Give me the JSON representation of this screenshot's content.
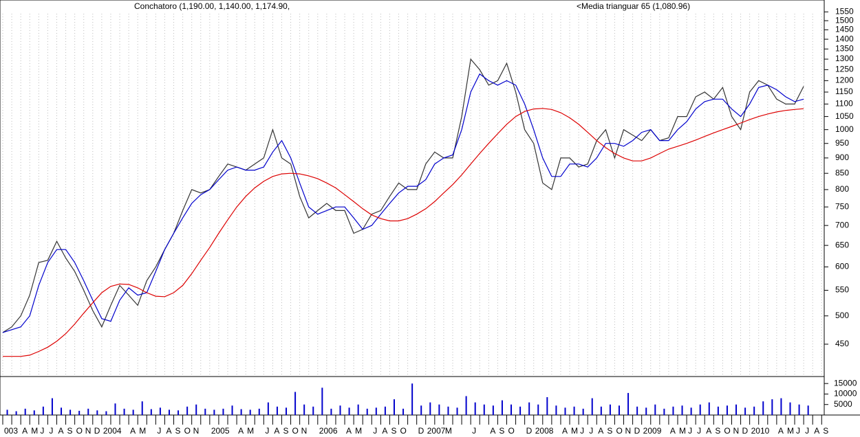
{
  "chart_data": [
    {
      "type": "line",
      "title": "Conchatoro (1,190.00, 1,140.00, 1,174.90,",
      "log": true,
      "ylim": [
        400,
        1620
      ],
      "yticks": [
        450,
        500,
        550,
        600,
        650,
        700,
        750,
        800,
        850,
        900,
        950,
        1000,
        1050,
        1100,
        1150,
        1200,
        1250,
        1300,
        1350,
        1400,
        1450,
        1500,
        1550
      ],
      "series": [
        {
          "color": "#333333",
          "values": [
            470,
            480,
            500,
            540,
            610,
            615,
            660,
            620,
            590,
            550,
            510,
            480,
            520,
            560,
            540,
            520,
            570,
            600,
            640,
            680,
            740,
            800,
            790,
            800,
            840,
            880,
            870,
            860,
            880,
            900,
            1000,
            900,
            880,
            780,
            720,
            740,
            760,
            740,
            740,
            680,
            690,
            730,
            740,
            780,
            820,
            800,
            800,
            880,
            920,
            900,
            900,
            1050,
            1300,
            1250,
            1180,
            1200,
            1280,
            1150,
            1000,
            950,
            820,
            800,
            900,
            900,
            870,
            880,
            960,
            1000,
            900,
            1000,
            980,
            960,
            1000,
            960,
            970,
            1050,
            1050,
            1130,
            1150,
            1120,
            1170,
            1050,
            1000,
            1150,
            1200,
            1180,
            1120,
            1100,
            1100,
            1175,
            null,
            null
          ]
        },
        {
          "color": "#0000cc",
          "values": [
            470,
            475,
            480,
            500,
            560,
            610,
            640,
            640,
            610,
            570,
            530,
            495,
            490,
            530,
            555,
            540,
            545,
            590,
            640,
            680,
            720,
            760,
            785,
            800,
            830,
            860,
            870,
            860,
            860,
            870,
            920,
            960,
            900,
            820,
            750,
            730,
            740,
            750,
            750,
            720,
            690,
            700,
            730,
            760,
            790,
            810,
            810,
            830,
            880,
            900,
            910,
            1000,
            1150,
            1230,
            1200,
            1180,
            1200,
            1180,
            1100,
            1000,
            900,
            840,
            840,
            880,
            880,
            870,
            900,
            950,
            950,
            940,
            960,
            990,
            1000,
            960,
            960,
            1000,
            1030,
            1080,
            1110,
            1120,
            1120,
            1080,
            1050,
            1100,
            1170,
            1180,
            1160,
            1130,
            1110,
            1120,
            null,
            null
          ]
        },
        {
          "name": "<Media trianguar  65 (1,080.96)",
          "color": "#dd0000",
          "values": [
            430,
            430,
            430,
            432,
            438,
            445,
            455,
            468,
            485,
            505,
            525,
            545,
            558,
            563,
            562,
            555,
            545,
            538,
            537,
            545,
            560,
            585,
            615,
            645,
            680,
            715,
            750,
            780,
            805,
            825,
            840,
            848,
            850,
            848,
            842,
            833,
            820,
            805,
            785,
            765,
            745,
            728,
            718,
            712,
            712,
            718,
            730,
            745,
            765,
            790,
            815,
            845,
            880,
            915,
            950,
            985,
            1020,
            1050,
            1070,
            1080,
            1082,
            1078,
            1065,
            1045,
            1020,
            990,
            960,
            935,
            915,
            900,
            890,
            890,
            900,
            915,
            930,
            940,
            950,
            962,
            975,
            988,
            1000,
            1012,
            1025,
            1038,
            1050,
            1060,
            1068,
            1074,
            1078,
            1081,
            null,
            null
          ]
        }
      ]
    },
    {
      "type": "bar",
      "color": "#0000cc",
      "ylim": [
        0,
        18000
      ],
      "yticks": [
        5000,
        10000,
        15000
      ],
      "categories": [
        "003",
        null,
        "A",
        "M",
        "J",
        "J",
        "A",
        "S",
        "O",
        "N",
        "D",
        "2004",
        null,
        null,
        "A",
        "M",
        null,
        "J",
        "A",
        "S",
        "O",
        "N",
        null,
        "2005",
        null,
        null,
        "A",
        "M",
        null,
        "J",
        "A",
        "S",
        "O",
        "N",
        null,
        "2006",
        null,
        null,
        "A",
        "M",
        null,
        "J",
        "A",
        "S",
        "O",
        null,
        "D",
        "2007",
        null,
        "M",
        null,
        null,
        "J",
        null,
        "A",
        "S",
        "O",
        null,
        "D",
        "2008",
        null,
        null,
        "A",
        "M",
        "J",
        "J",
        "A",
        "S",
        "O",
        "N",
        "D",
        "2009",
        null,
        null,
        "A",
        "M",
        "J",
        "J",
        "A",
        "S",
        "O",
        "N",
        "D",
        "2010",
        null,
        null,
        "A",
        "M",
        "J",
        "J",
        "A",
        "S"
      ],
      "values": [
        2500,
        1800,
        3000,
        2200,
        4000,
        8000,
        3500,
        2500,
        2000,
        3000,
        2200,
        1800,
        5500,
        3000,
        2500,
        6500,
        2800,
        3500,
        2500,
        2200,
        4000,
        5000,
        3000,
        2500,
        3000,
        4500,
        2800,
        2500,
        3000,
        6000,
        4000,
        3500,
        11000,
        5000,
        4000,
        13000,
        3000,
        4500,
        3500,
        5000,
        3000,
        3500,
        4000,
        7500,
        3000,
        15000,
        4500,
        6000,
        5000,
        4000,
        3500,
        9000,
        6000,
        5000,
        4500,
        7000,
        5000,
        4000,
        6000,
        5000,
        8500,
        4500,
        3500,
        4000,
        3000,
        8000,
        4000,
        5000,
        4500,
        10500,
        4000,
        3500,
        5000,
        3000,
        4000,
        4500,
        3500,
        5000,
        6000,
        4000,
        4500,
        5000,
        3500,
        4000,
        6500,
        7500,
        8000,
        6000,
        5000,
        4500,
        null,
        null
      ]
    }
  ]
}
